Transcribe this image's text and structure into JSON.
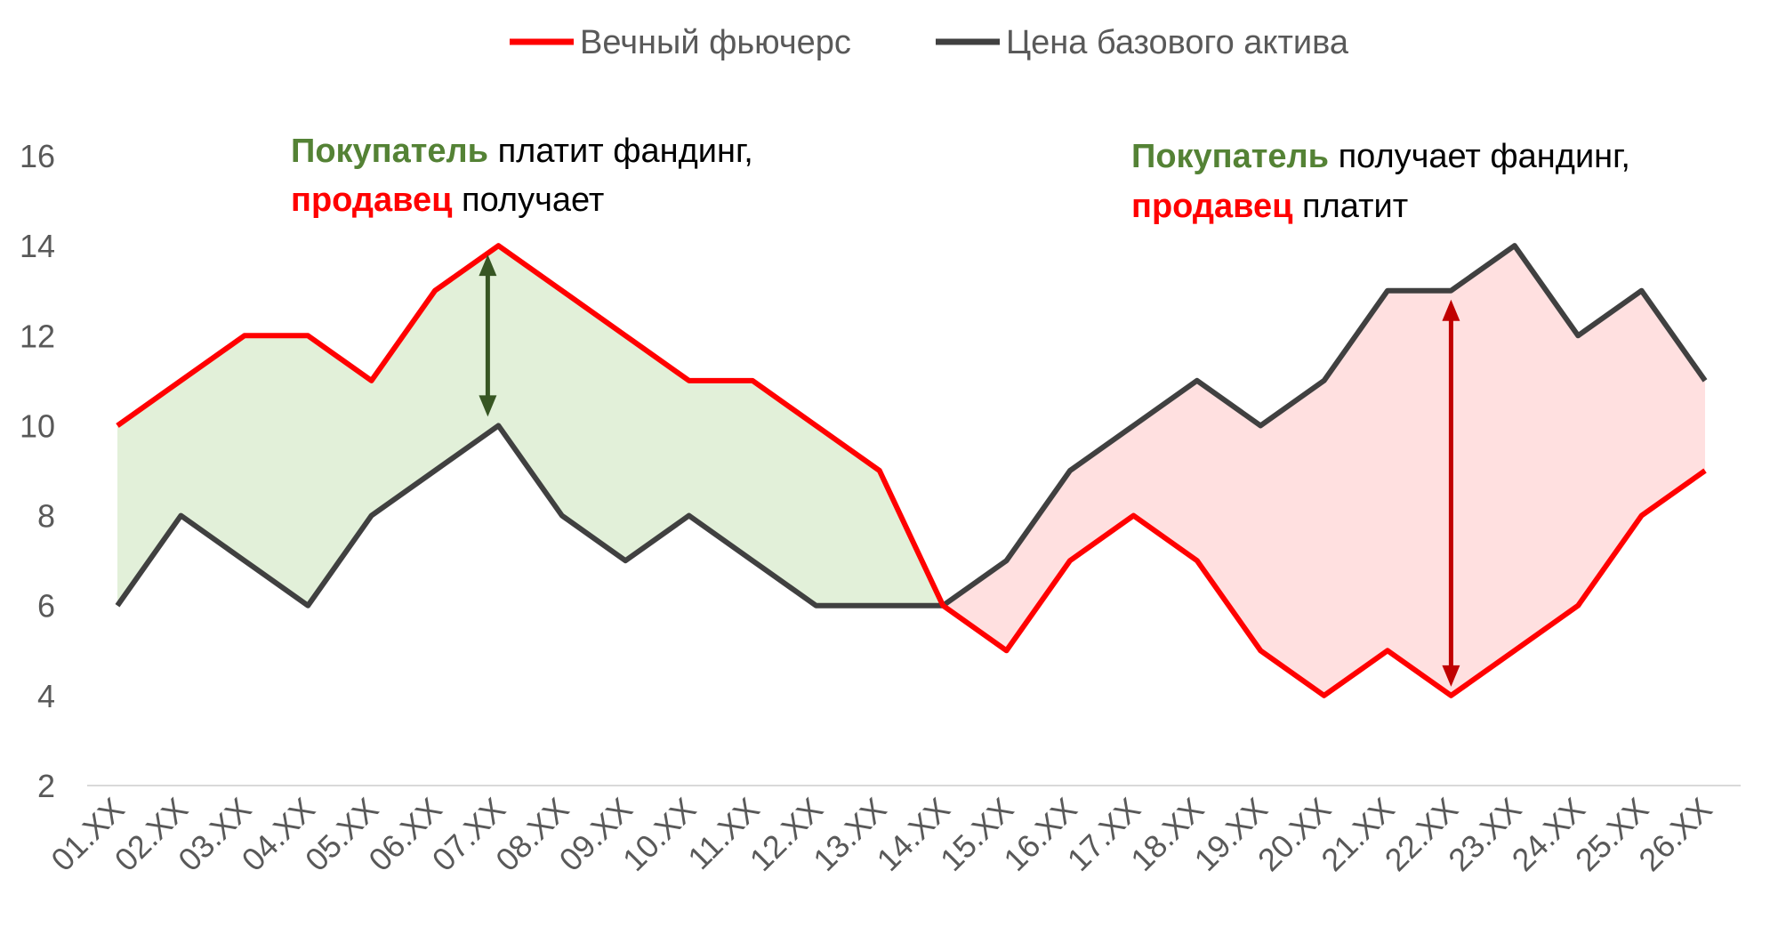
{
  "chart_data": {
    "type": "line",
    "title": "",
    "xlabel": "",
    "ylabel": "",
    "ylim": [
      2,
      16
    ],
    "yticks": [
      2,
      4,
      6,
      8,
      10,
      12,
      14,
      16
    ],
    "grid": false,
    "legend_position": "top-center",
    "categories": [
      "01.XX",
      "02.XX",
      "03.XX",
      "04.XX",
      "05.XX",
      "06.XX",
      "07.XX",
      "08.XX",
      "09.XX",
      "10.XX",
      "11.XX",
      "12.XX",
      "13.XX",
      "14.XX",
      "15.XX",
      "16.XX",
      "17.XX",
      "18.XX",
      "19.XX",
      "20.XX",
      "21.XX",
      "22.XX",
      "23.XX",
      "24.XX",
      "25.XX",
      "26.XX"
    ],
    "series": [
      {
        "name": "Вечный фьючерс",
        "color": "#ff0000",
        "values": [
          10,
          11,
          12,
          12,
          11,
          13,
          14,
          13,
          12,
          11,
          11,
          10,
          9,
          6,
          5,
          7,
          8,
          7,
          5,
          4,
          5,
          4,
          5,
          6,
          8,
          9
        ]
      },
      {
        "name": "Цена базового актива",
        "color": "#404040",
        "values": [
          6,
          8,
          7,
          6,
          8,
          9,
          10,
          8,
          7,
          8,
          7,
          6,
          6,
          6,
          7,
          9,
          10,
          11,
          10,
          11,
          13,
          13,
          14,
          12,
          13,
          11
        ]
      }
    ],
    "fills": [
      {
        "from": "01.XX",
        "to": "14.XX",
        "color": "#e2f0d9"
      },
      {
        "from": "14.XX",
        "to": "26.XX",
        "color": "#ffe0e0"
      }
    ],
    "arrows": [
      {
        "at": "07.XX",
        "from": 14,
        "to": 10,
        "color": "#375623"
      },
      {
        "at": "22.XX",
        "from": 13,
        "to": 4,
        "color": "#c00000"
      }
    ],
    "annotations": [
      {
        "bold": "Покупатель",
        "rest": " платит фандинг,",
        "bold2": "продавец",
        "rest2": " получает"
      },
      {
        "bold": "Покупатель",
        "rest": " получает фандинг,",
        "bold2": "продавец",
        "rest2": " платит"
      }
    ]
  }
}
